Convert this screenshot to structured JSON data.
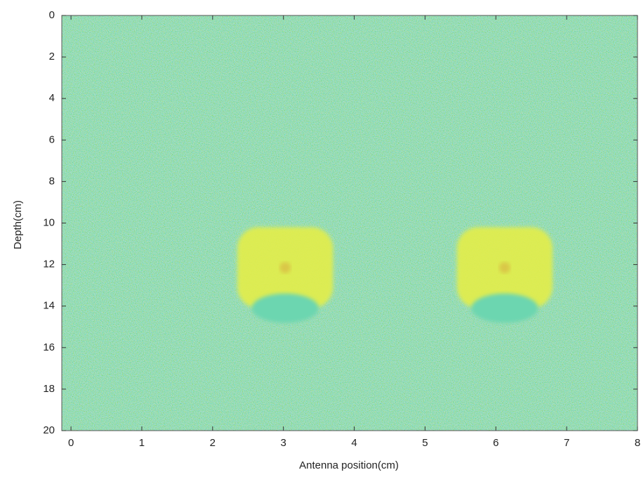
{
  "chart_data": {
    "type": "image",
    "xlabel": "Antenna position(cm)",
    "ylabel": "Depth(cm)",
    "xlim": [
      -0.13,
      8
    ],
    "xticks": [
      0,
      1,
      2,
      3,
      4,
      5,
      6,
      7,
      8
    ],
    "ylim": [
      0,
      20
    ],
    "yticks": [
      0,
      2,
      4,
      6,
      8,
      10,
      12,
      14,
      16,
      18,
      20
    ],
    "y_inverted": true,
    "background_color": "#6cd6b0",
    "regions": [
      {
        "x": [
          2.35,
          3.7
        ],
        "y": [
          10.2,
          14.1
        ],
        "color": "#e4ee48"
      },
      {
        "x": [
          5.45,
          6.8
        ],
        "y": [
          10.2,
          14.1
        ],
        "color": "#e4ee48"
      }
    ]
  }
}
